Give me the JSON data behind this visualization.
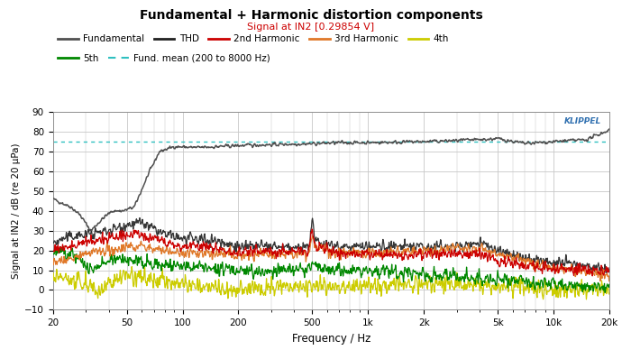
{
  "title": "Fundamental + Harmonic distortion components",
  "subtitle": "Signal at IN2 [0.29854 V]",
  "xlabel": "Frequency / Hz",
  "ylabel": "Signal at IN2 / dB (re 20 µPa)",
  "xlim": [
    20,
    20000
  ],
  "ylim": [
    -10,
    90
  ],
  "yticks": [
    -10,
    0,
    10,
    20,
    30,
    40,
    50,
    60,
    70,
    80,
    90
  ],
  "xtick_labels": [
    "20",
    "50",
    "100",
    "200",
    "500",
    "1k",
    "2k",
    "5k",
    "10k",
    "20k"
  ],
  "xtick_vals": [
    20,
    50,
    100,
    200,
    500,
    1000,
    2000,
    5000,
    10000,
    20000
  ],
  "fund_mean": 74.8,
  "colors": {
    "fundamental": "#505050",
    "THD": "#202020",
    "2nd": "#cc0000",
    "3rd": "#e07828",
    "4th": "#cccc00",
    "5th": "#008800",
    "mean": "#30c0c0"
  },
  "background": "#ffffff",
  "grid_color": "#c8c8c8",
  "klippel_color": "#3070b0"
}
